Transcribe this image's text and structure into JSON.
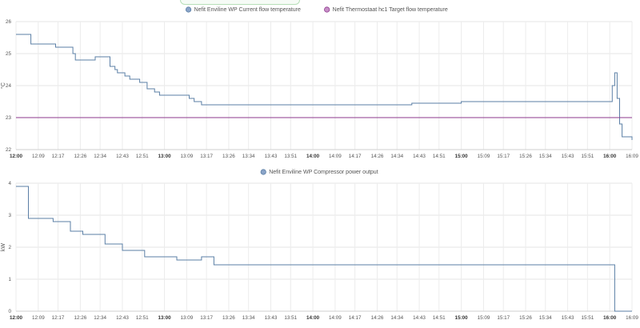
{
  "chart_data": [
    {
      "type": "line",
      "ylabel": "°C",
      "ylim": [
        22,
        26
      ],
      "yticks": [
        22,
        23,
        24,
        25,
        26
      ],
      "grid": true,
      "legend_position": "top-center",
      "x_tick_labels": [
        "12:00",
        "12:09",
        "12:17",
        "12:26",
        "12:34",
        "12:43",
        "12:51",
        "13:00",
        "13:09",
        "13:17",
        "13:26",
        "13:34",
        "13:43",
        "13:51",
        "14:00",
        "14:09",
        "14:17",
        "14:26",
        "14:34",
        "14:43",
        "14:51",
        "15:00",
        "15:09",
        "15:17",
        "15:26",
        "15:34",
        "15:43",
        "15:51",
        "16:00",
        "16:09"
      ],
      "bold_ticks": [
        "12:00",
        "13:00",
        "14:00",
        "15:00",
        "16:00"
      ],
      "series": [
        {
          "name": "Nefit Enviline WP Current flow temperature",
          "color": "#5b7fa6",
          "marker_color": "#8aa4c8",
          "x": [
            "12:00",
            "12:05",
            "12:06",
            "12:15",
            "12:16",
            "12:21",
            "12:23",
            "12:24",
            "12:31",
            "12:32",
            "12:36",
            "12:38",
            "12:40",
            "12:41",
            "12:44",
            "12:46",
            "12:50",
            "12:53",
            "12:56",
            "12:58",
            "13:05",
            "13:10",
            "13:12",
            "13:15",
            "13:20",
            "13:40",
            "14:00",
            "14:20",
            "14:40",
            "15:00",
            "15:20",
            "15:40",
            "15:55",
            "16:00",
            "16:01",
            "16:02",
            "16:03",
            "16:04",
            "16:05",
            "16:06",
            "16:09"
          ],
          "values": [
            25.6,
            25.6,
            25.3,
            25.3,
            25.2,
            25.2,
            25.0,
            24.8,
            24.8,
            24.9,
            24.9,
            24.6,
            24.5,
            24.4,
            24.3,
            24.2,
            24.1,
            23.9,
            23.8,
            23.7,
            23.7,
            23.6,
            23.5,
            23.4,
            23.4,
            23.4,
            23.4,
            23.4,
            23.45,
            23.5,
            23.5,
            23.5,
            23.5,
            23.5,
            24.0,
            24.4,
            23.6,
            22.8,
            22.4,
            22.4,
            22.3
          ]
        },
        {
          "name": "Nefit Thermostaat hc1 Target flow temperature",
          "color": "#8e3a8e",
          "marker_color": "#c78fc7",
          "x": [
            "12:00",
            "16:09"
          ],
          "values": [
            23,
            23
          ]
        }
      ]
    },
    {
      "type": "line",
      "ylabel": "kW",
      "ylim": [
        0,
        4
      ],
      "yticks": [
        0,
        1,
        2,
        3,
        4
      ],
      "grid": true,
      "legend_position": "top-center",
      "x_tick_labels": [
        "12:00",
        "12:09",
        "12:17",
        "12:26",
        "12:34",
        "12:43",
        "12:51",
        "13:00",
        "13:09",
        "13:17",
        "13:26",
        "13:34",
        "13:43",
        "13:51",
        "14:00",
        "14:09",
        "14:17",
        "14:26",
        "14:34",
        "14:43",
        "14:51",
        "15:00",
        "15:09",
        "15:17",
        "15:26",
        "15:34",
        "15:43",
        "15:51",
        "16:00",
        "16:09"
      ],
      "bold_ticks": [
        "12:00",
        "13:00",
        "14:00",
        "15:00",
        "16:00"
      ],
      "series": [
        {
          "name": "Nefit Enviline WP Compressor power output",
          "color": "#5b7fa6",
          "marker_color": "#8aa4c8",
          "x": [
            "12:00",
            "12:04",
            "12:05",
            "12:12",
            "12:15",
            "12:22",
            "12:25",
            "12:27",
            "12:28",
            "12:36",
            "12:37",
            "12:42",
            "12:43",
            "12:50",
            "12:52",
            "13:00",
            "13:05",
            "13:10",
            "13:15",
            "13:20",
            "13:40",
            "14:00",
            "14:20",
            "14:40",
            "15:00",
            "15:20",
            "15:40",
            "15:55",
            "16:01",
            "16:02",
            "16:09"
          ],
          "values": [
            3.9,
            3.9,
            2.9,
            2.9,
            2.8,
            2.5,
            2.5,
            2.4,
            2.4,
            2.1,
            2.1,
            2.1,
            1.9,
            1.9,
            1.7,
            1.7,
            1.6,
            1.6,
            1.7,
            1.45,
            1.45,
            1.45,
            1.45,
            1.45,
            1.45,
            1.45,
            1.45,
            1.45,
            1.45,
            0.0,
            0.0
          ]
        }
      ]
    }
  ]
}
